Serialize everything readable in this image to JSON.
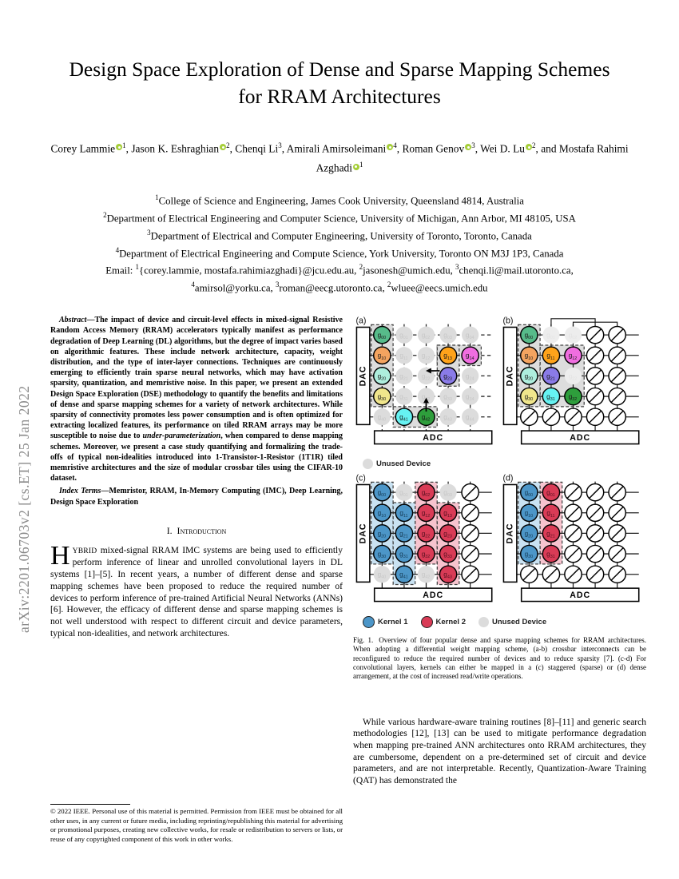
{
  "arxiv_banner": "arXiv:2201.06703v2  [cs.ET]  25 Jan 2022",
  "title": "Design Space Exploration of Dense and Sparse Mapping Schemes for RRAM Architectures",
  "authors": [
    {
      "name": "Corey Lammie",
      "orcid": true,
      "sup": "1"
    },
    {
      "name": "Jason K. Eshraghian",
      "orcid": true,
      "sup": "2"
    },
    {
      "name": "Chenqi Li",
      "orcid": false,
      "sup": "3"
    },
    {
      "name": "Amirali Amirsoleimani",
      "orcid": true,
      "sup": "4"
    },
    {
      "name": "Roman Genov",
      "orcid": true,
      "sup": "3"
    },
    {
      "name": "Wei D. Lu",
      "orcid": true,
      "sup": "2"
    },
    {
      "name": "Mostafa Rahimi Azghadi",
      "orcid": true,
      "sup": "1"
    }
  ],
  "affiliations": {
    "lines": [
      [
        {
          "s": "1"
        },
        {
          "t": "College of Science and Engineering, James Cook University, Queensland 4814, Australia"
        }
      ],
      [
        {
          "s": "2"
        },
        {
          "t": "Department of Electrical Engineering and Computer Science, University of Michigan, Ann Arbor, MI 48105, USA"
        }
      ],
      [
        {
          "s": "3"
        },
        {
          "t": "Department of Electrical and Computer Engineering, University of Toronto, Toronto, Canada"
        }
      ],
      [
        {
          "s": "4"
        },
        {
          "t": "Department of Electrical Engineering and Compute Science, York University, Toronto ON M3J 1P3, Canada"
        }
      ],
      [
        {
          "t": "Email: "
        },
        {
          "s": "1"
        },
        {
          "t": "{corey.lammie, mostafa.rahimiazghadi}@jcu.edu.au, "
        },
        {
          "s": "2"
        },
        {
          "t": "jasonesh@umich.edu, "
        },
        {
          "s": "3"
        },
        {
          "t": "chenqi.li@mail.utoronto.ca,"
        }
      ],
      [
        {
          "s": "4"
        },
        {
          "t": "amirsol@yorku.ca, "
        },
        {
          "s": "3"
        },
        {
          "t": "roman@eecg.utoronto.ca, "
        },
        {
          "s": "2"
        },
        {
          "t": "wluee@eecs.umich.edu"
        }
      ]
    ]
  },
  "abstract": {
    "lead": "Abstract",
    "segments": [
      {
        "t": "—The impact of device and circuit-level effects in mixed-signal Resistive Random Access Memory (RRAM) accelerators typically manifest as performance degradation of Deep Learning (DL) algorithms, but the degree of impact varies based on algorithmic features. These include network architecture, capacity, weight distribution, and the type of inter-layer connections. Techniques are continuously emerging to efficiently train sparse neural networks, which may have activation sparsity, quantization, and memristive noise. In this paper, we present an extended Design Space Exploration (DSE) methodology to quantify the benefits and limitations of dense and sparse mapping schemes for a variety of network architectures. While sparsity of connectivity promotes less power consumption and is often optimized for extracting localized features, its performance on tiled RRAM arrays may be more susceptible to noise due to "
      },
      {
        "i": "under-parameterization"
      },
      {
        "t": ", when compared to dense mapping schemes. Moreover, we present a case study quantifying and formalizing the trade-offs of typical non-idealities introduced into 1-Transistor-1-Resistor (1T1R) tiled memristive architectures and the size of modular crossbar tiles using the CIFAR-10 dataset."
      }
    ]
  },
  "index_terms": {
    "lead": "Index Terms",
    "segments": [
      {
        "t": "—Memristor, RRAM, In-Memory Computing (IMC), Deep Learning, Design Space Exploration"
      }
    ]
  },
  "introduction": {
    "heading_number": "I.",
    "heading_title": "Introduction",
    "dropcap": "H",
    "lead_caps": "YBRID",
    "text": " mixed-signal RRAM IMC systems are being used to efficiently perform inference of linear and unrolled convolutional layers in DL systems [1]–[5]. In recent years, a number of different dense and sparse mapping schemes have been proposed to reduce the required number of devices to perform inference of pre-trained Artificial Neural Networks (ANNs) [6]. However, the efficacy of different dense and sparse mapping schemes is not well understood with respect to different circuit and device parameters, typical non-idealities, and network architectures."
  },
  "footnote": "© 2022 IEEE. Personal use of this material is permitted. Permission from IEEE must be obtained for all other uses, in any current or future media, including reprinting/republishing this material for advertising or promotional purposes, creating new collective works, for resale or redistribution to servers or lists, or reuse of any copyrighted component of this work in other works.",
  "figure": {
    "caption_lead": "Fig. 1.",
    "caption": "Overview of four popular dense and sparse mapping schemes for RRAM architectures. When adopting a differential weight mapping scheme, (a-b) crossbar interconnects can be reconfigured to reduce the required number of devices and to reduce sparsity [7]. (c-d) For convolutional layers, kernels can either be mapped in a (c) staggered (sparse) or (d) dense arrangement, at the cost of increased read/write operations.",
    "dac_label": "DAC",
    "adc_label": "ADC",
    "colors": {
      "green": "#57bb8a",
      "salmon": "#f4a460",
      "paleturquoise": "#aeeedd",
      "khaki": "#f0e68c",
      "orange": "#ffa31a",
      "magenta": "#f06ee0",
      "purple": "#8a7be8",
      "cyan": "#66f2f2",
      "darkgreen": "#2e9e3c",
      "kernel1": "#4c96c8",
      "kernel2": "#d93b56",
      "unused": "#dcdcdc",
      "unused_faded": "#ededed",
      "box_gray": "#dddddd",
      "box_blue": "#c9e2f2",
      "box_red": "#f7c3ce"
    },
    "panels": [
      {
        "id": "a",
        "label": "(a)",
        "dashed_wires": true,
        "cells": [
          [
            "green:00",
            "u",
            "u",
            "u",
            "u"
          ],
          [
            "salmon:10",
            "u",
            "u",
            "orange:13",
            "magenta:14"
          ],
          [
            "paleturquoise:20",
            "u",
            "u",
            "purple:23",
            "u"
          ],
          [
            "khaki:30",
            "u",
            "u",
            "u",
            "u"
          ],
          [
            "u",
            "cyan:41",
            "darkgreen:42",
            "u",
            "u"
          ]
        ],
        "boxes": [
          {
            "r0": 0,
            "c0": 0,
            "r1": 3,
            "c1": 0,
            "fill": "box_gray"
          },
          {
            "r0": 1,
            "c0": 3,
            "r1": 1,
            "c1": 4,
            "fill": "box_gray"
          },
          {
            "r0": 1,
            "c0": 3,
            "r1": 2,
            "c1": 3,
            "fill": "box_gray"
          },
          {
            "r0": 4,
            "c0": 1,
            "r1": 4,
            "c1": 2,
            "fill": "box_gray"
          }
        ],
        "arrows": [
          {
            "r": 1.75,
            "c": 2.3,
            "dir": "left"
          },
          {
            "r": 3.4,
            "c": 2.0,
            "dir": "up"
          }
        ]
      },
      {
        "id": "b",
        "label": "(b)",
        "dashed_wires": false,
        "cells": [
          [
            "green:00",
            "f",
            "f",
            "s",
            "s"
          ],
          [
            "salmon:10",
            "orange:11",
            "magenta:12",
            "s",
            "s"
          ],
          [
            "paleturquoise:20",
            "purple:21",
            "f",
            "s",
            "s"
          ],
          [
            "khaki:30",
            "cyan:31",
            "darkgreen:32",
            "s",
            "s"
          ],
          [
            "s",
            "s",
            "s",
            "s",
            "s"
          ]
        ],
        "boxes": [
          {
            "r0": 0,
            "c0": 0,
            "r1": 3,
            "c1": 0,
            "fill": "box_gray"
          },
          {
            "r0": 1,
            "c0": 1,
            "r1": 3,
            "c1": 2,
            "fill": "box_gray"
          }
        ],
        "routes": [
          {
            "fromCol": 1,
            "toCol": 3
          },
          {
            "fromCol": 2,
            "toCol": 4
          }
        ]
      },
      {
        "id": "c",
        "label": "(c)",
        "dashed_wires": false,
        "cells": [
          [
            "k1:00",
            "u",
            "k2:02",
            "u",
            "s"
          ],
          [
            "k1:10",
            "k1:11",
            "k2:12",
            "k2:13",
            "s"
          ],
          [
            "k1:20",
            "k1:21",
            "k2:22",
            "k2:23",
            "s"
          ],
          [
            "k1:30",
            "k1:31",
            "k2:32",
            "k2:33",
            "s"
          ],
          [
            "u",
            "k1:41",
            "u",
            "k2:43",
            "s"
          ]
        ],
        "boxes": [
          {
            "r0": 0,
            "c0": 0,
            "r1": 3,
            "c1": 0,
            "fill": "box_blue"
          },
          {
            "r0": 1,
            "c0": 1,
            "r1": 4,
            "c1": 1,
            "fill": "box_blue"
          },
          {
            "r0": 0,
            "c0": 2,
            "r1": 3,
            "c1": 2,
            "fill": "box_red"
          },
          {
            "r0": 1,
            "c0": 3,
            "r1": 4,
            "c1": 3,
            "fill": "box_red"
          }
        ]
      },
      {
        "id": "d",
        "label": "(d)",
        "dashed_wires": false,
        "cells": [
          [
            "k1:00",
            "k2:01",
            "s",
            "s",
            "s"
          ],
          [
            "k1:10",
            "k2:11",
            "s",
            "s",
            "s"
          ],
          [
            "k1:20",
            "k2:21",
            "s",
            "s",
            "s"
          ],
          [
            "k1:30",
            "k2:31",
            "s",
            "s",
            "s"
          ],
          [
            "s",
            "s",
            "s",
            "s",
            "s"
          ]
        ],
        "boxes": [
          {
            "r0": 0,
            "c0": 0,
            "r1": 3,
            "c1": 0,
            "fill": "box_blue"
          },
          {
            "r0": 0,
            "c0": 1,
            "r1": 3,
            "c1": 1,
            "fill": "box_red"
          }
        ]
      }
    ],
    "legend_row1": [
      {
        "key": "unused",
        "label": "Unused Device"
      }
    ],
    "legend_row2": [
      {
        "key": "kernel1",
        "label": "Kernel 1"
      },
      {
        "key": "kernel2",
        "label": "Kernel 2"
      },
      {
        "key": "unused",
        "label": "Unused Device"
      }
    ]
  },
  "body_right": {
    "paragraph": "While various hardware-aware training routines [8]–[11] and generic search methodologies [12], [13] can be used to mitigate performance degradation when mapping pre-trained ANN architectures onto RRAM architectures, they are cumbersome, dependent on a pre-determined set of circuit and device parameters, and are not interpretable. Recently, Quantization-Aware Training (QAT) has demonstrated the"
  }
}
